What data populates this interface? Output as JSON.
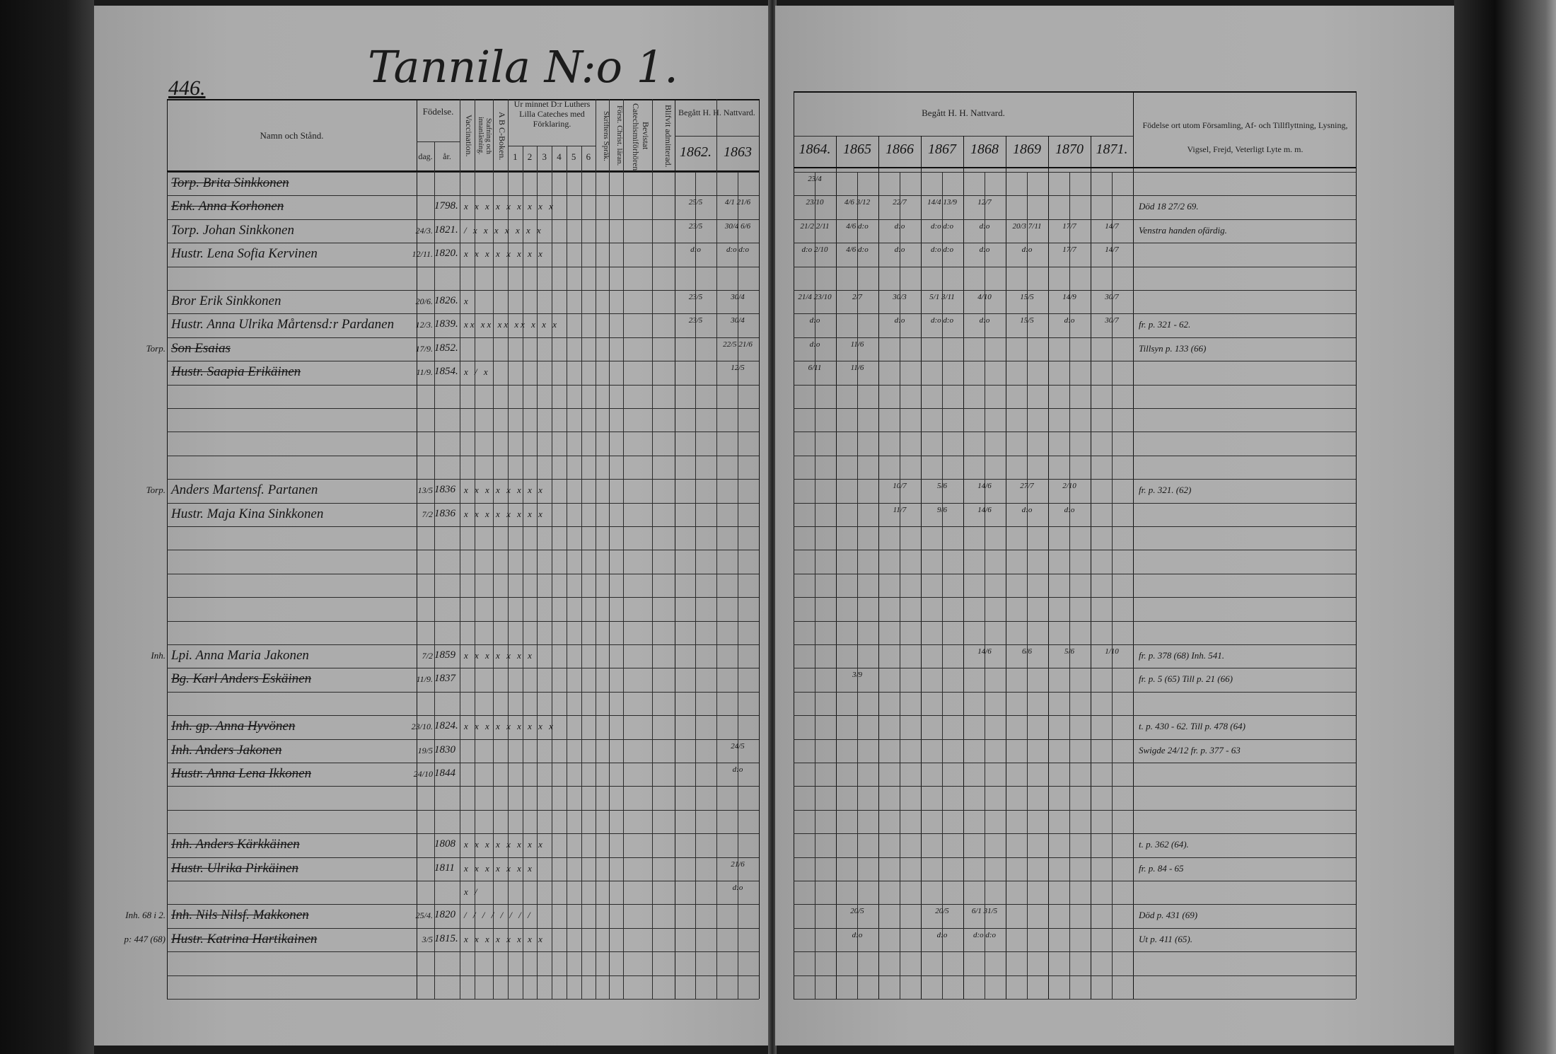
{
  "page_number": "446.",
  "title": "Tannila N:o 1.",
  "headers": {
    "name": "Namn och Stånd.",
    "birth": "Födelse.",
    "birth_day": "dag.",
    "birth_year": "år.",
    "vaccination": "Vaccination.",
    "spelling": "Stafning och innanläsning.",
    "abc": "A B C-Boken.",
    "catechism": "Ur minnet D:r Luthers Lilla Cateches med Förklaring.",
    "catechism_parts": [
      "1",
      "2",
      "3",
      "4",
      "5",
      "6"
    ],
    "scripture": "Skriftens Språk.",
    "christian": "Först. Christ. läran.",
    "examinations": "Bevistat Catechismiförhören.",
    "admitted": "Blifvit admitterad.",
    "communion_left": "Begått H. H. Nattvard.",
    "communion_right": "Begått H. H. Nattvard.",
    "years": [
      "1862.",
      "1863",
      "1864.",
      "1865",
      "1866",
      "1867",
      "1868",
      "1869",
      "1870",
      "1871."
    ],
    "remarks": "Födelse ort utom Församling, Af- och Tillflyttning, Lysning, Vigsel, Frejd, Veterligt Lyte m. m."
  },
  "rows": [
    {
      "row": 0,
      "margin": "",
      "name": "Torp. Brita Sinkkonen",
      "struck": true,
      "day": "",
      "year": "",
      "marks": "",
      "remark": "",
      "comm": [
        "",
        "",
        "23/4",
        "",
        "",
        "",
        "",
        "",
        "",
        ""
      ]
    },
    {
      "row": 1,
      "margin": "",
      "name": "Enk. Anna Korhonen",
      "struck": true,
      "day": "",
      "year": "1798.",
      "marks": "x x x x x x x x x",
      "remark": "Död 18 27/2 69.",
      "comm": [
        "25/5",
        "4/1 21/6",
        "23/10",
        "4/6 3/12",
        "22/7",
        "14/4 13/9",
        "12/7",
        "",
        "",
        ""
      ]
    },
    {
      "row": 2,
      "margin": "",
      "name": "Torp. Johan Sinkkonen",
      "struck": false,
      "day": "24/3.",
      "year": "1821.",
      "marks": "/ x x x x x x x",
      "remark": "Venstra handen ofärdig.",
      "comm": [
        "23/5",
        "30/4 6/6",
        "21/2 2/11",
        "4/6 d:o",
        "d:o",
        "d:o d:o",
        "d:o",
        "20/3 7/11",
        "17/7",
        "14/7"
      ]
    },
    {
      "row": 3,
      "margin": "",
      "name": "Hustr. Lena Sofia Kervinen",
      "struck": false,
      "day": "12/11.",
      "year": "1820.",
      "marks": "x x x x x x x x",
      "remark": "",
      "comm": [
        "d:o",
        "d:o d:o",
        "d:o 2/10",
        "4/6 d:o",
        "d:o",
        "d:o d:o",
        "d:o",
        "d:o",
        "17/7",
        "14/7"
      ]
    },
    {
      "row": 5,
      "margin": "",
      "name": "Bror Erik Sinkkonen",
      "struck": false,
      "day": "20/6.",
      "year": "1826.",
      "marks": "x",
      "remark": "",
      "comm": [
        "23/5",
        "30/4",
        "21/4 23/10",
        "2/7",
        "30/3",
        "5/1 3/11",
        "4/10",
        "15/5",
        "14/9",
        "30/7"
      ]
    },
    {
      "row": 6,
      "margin": "",
      "name": "Hustr. Anna Ulrika Mårtensd:r Pardanen",
      "struck": false,
      "day": "12/3.",
      "year": "1839.",
      "marks": "xx xx xx xx x x x",
      "remark": "fr. p. 321 - 62.",
      "comm": [
        "23/5",
        "30/4",
        "d:o",
        "",
        "d:o",
        "d:o d:o",
        "d:o",
        "15/5",
        "d:o",
        "30/7"
      ]
    },
    {
      "row": 7,
      "margin": "Torp.",
      "name": "Son Esaias",
      "struck": true,
      "day": "17/9.",
      "year": "1852.",
      "marks": "",
      "remark": "Tillsyn p. 133 (66)",
      "comm": [
        "",
        "22/5 21/6",
        "d:o",
        "11/6",
        "",
        "",
        "",
        "",
        "",
        ""
      ]
    },
    {
      "row": 8,
      "margin": "",
      "name": "Hustr. Saapia Erikäinen",
      "struck": true,
      "day": "11/9.",
      "year": "1854.",
      "marks": "x / x",
      "remark": "",
      "comm": [
        "",
        "12/5",
        "6/11",
        "11/6",
        "",
        "",
        "",
        "",
        "",
        ""
      ]
    },
    {
      "row": 13,
      "margin": "Torp.",
      "name": "Anders Martensf. Partanen",
      "struck": false,
      "day": "13/5",
      "year": "1836",
      "marks": "x x x x x x x x",
      "remark": "fr. p. 321. (62)",
      "comm": [
        "",
        "",
        "",
        "",
        "10/7",
        "5/6",
        "14/6",
        "27/7",
        "2/10",
        ""
      ]
    },
    {
      "row": 14,
      "margin": "",
      "name": "Hustr. Maja Kina Sinkkonen",
      "struck": false,
      "day": "7/2",
      "year": "1836",
      "marks": "x x x x x x x x",
      "remark": "",
      "comm": [
        "",
        "",
        "",
        "",
        "11/7",
        "9/6",
        "14/6",
        "d:o",
        "d:o",
        ""
      ]
    },
    {
      "row": 20,
      "margin": "Inh.",
      "name": "Lpi. Anna Maria Jakonen",
      "struck": false,
      "day": "7/2",
      "year": "1859",
      "marks": "x x x x x x x",
      "remark": "fr. p. 378 (68)  Inh. 541.",
      "comm": [
        "",
        "",
        "",
        "",
        "",
        "",
        "14/6",
        "6/6",
        "5/6",
        "1/10"
      ]
    },
    {
      "row": 21,
      "margin": "",
      "name": "Bg. Karl Anders Eskäinen",
      "struck": true,
      "day": "11/9.",
      "year": "1837",
      "marks": "",
      "remark": "fr. p. 5 (65)     Till p. 21 (66)",
      "comm": [
        "",
        "",
        "",
        "3/9",
        "",
        "",
        "",
        "",
        "",
        ""
      ]
    },
    {
      "row": 23,
      "margin": "",
      "name": "Inh. gp. Anna Hyvönen",
      "struck": true,
      "day": "23/10.",
      "year": "1824.",
      "marks": "x x x x x x x x x",
      "remark": "t. p. 430 - 62.  Till p. 478 (64)",
      "comm": [
        "",
        "",
        "",
        "",
        "",
        "",
        "",
        "",
        "",
        ""
      ]
    },
    {
      "row": 24,
      "margin": "",
      "name": "Inh. Anders Jakonen",
      "struck": true,
      "day": "19/5",
      "year": "1830",
      "marks": "",
      "remark": "Swigde 24/12  fr. p. 377 - 63",
      "comm": [
        "",
        "24/5",
        "",
        "",
        "",
        "",
        "",
        "",
        "",
        ""
      ]
    },
    {
      "row": 25,
      "margin": "",
      "name": "Hustr. Anna Lena Ikkonen",
      "struck": true,
      "day": "24/10",
      "year": "1844",
      "marks": "",
      "remark": "",
      "comm": [
        "",
        "d:o",
        "",
        "",
        "",
        "",
        "",
        "",
        "",
        ""
      ]
    },
    {
      "row": 28,
      "margin": "",
      "name": "Inh. Anders Kärkkäinen",
      "struck": true,
      "day": "",
      "year": "1808",
      "marks": "x x x x x x x x",
      "remark": "t. p. 362 (64).",
      "comm": [
        "",
        "",
        "",
        "",
        "",
        "",
        "",
        "",
        "",
        ""
      ]
    },
    {
      "row": 29,
      "margin": "",
      "name": "Hustr. Ulrika Pirkäinen",
      "struck": true,
      "day": "",
      "year": "1811",
      "marks": "x x x x x x x",
      "remark": "fr. p. 84 - 65",
      "comm": [
        "",
        "21/6",
        "",
        "",
        "",
        "",
        "",
        "",
        "",
        ""
      ]
    },
    {
      "row": 30,
      "margin": "",
      "name": "",
      "struck": false,
      "day": "",
      "year": "",
      "marks": "x /",
      "remark": "",
      "comm": [
        "",
        "d:o",
        "",
        "",
        "",
        "",
        "",
        "",
        "",
        ""
      ]
    },
    {
      "row": 31,
      "margin": "Inh. 68 i 2.",
      "name": "Inh. Nils Nilsf. Makkonen",
      "struck": true,
      "day": "25/4.",
      "year": "1820",
      "marks": "/ / / / / / / /",
      "remark": "Död p. 431 (69)",
      "comm": [
        "",
        "",
        "",
        "20/5",
        "",
        "20/5",
        "6/1 31/5",
        "",
        "",
        ""
      ]
    },
    {
      "row": 32,
      "margin": "p: 447 (68)",
      "name": "Hustr. Katrina Hartikainen",
      "struck": true,
      "day": "3/5",
      "year": "1815.",
      "marks": "x x x x x x x x",
      "remark": "Ut p. 411 (65).",
      "comm": [
        "",
        "",
        "",
        "d:o",
        "",
        "d:o",
        "d:o d:o",
        "",
        "",
        ""
      ]
    }
  ]
}
